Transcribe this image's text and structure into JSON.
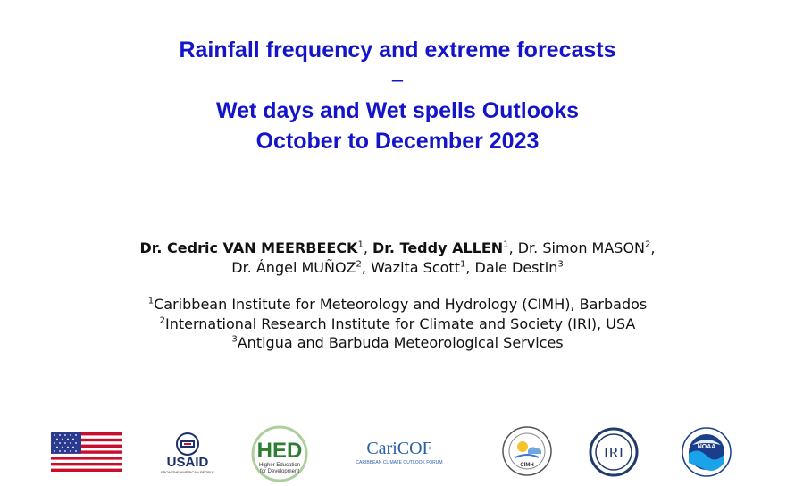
{
  "title": {
    "line1": "Rainfall frequency and extreme forecasts",
    "line2": "–",
    "line3": "Wet days and Wet spells Outlooks",
    "line4": "October to December 2023"
  },
  "authors": [
    {
      "name": "Dr. Cedric VAN MEERBEECK",
      "sup": "1",
      "bold": true,
      "sep": ", "
    },
    {
      "name": "Dr. Teddy ALLEN",
      "sup": "1",
      "bold": true,
      "sep": ", "
    },
    {
      "name": "Dr. Simon MASON",
      "sup": "2",
      "bold": false,
      "sep": ","
    },
    {
      "name": "Dr. Ángel MUÑOZ",
      "sup": "2",
      "bold": false,
      "sep": ", "
    },
    {
      "name": "Wazita Scott",
      "sup": "1",
      "bold": false,
      "sep": ", "
    },
    {
      "name": "Dale Destin",
      "sup": "3",
      "bold": false,
      "sep": ""
    }
  ],
  "affiliations": [
    {
      "sup": "1",
      "text": "Caribbean Institute for Meteorology and Hydrology (CIMH), Barbados"
    },
    {
      "sup": "2",
      "text": "International Research Institute for Climate and Society (IRI), USA"
    },
    {
      "sup": "3",
      "text": "Antigua and Barbuda Meteorological Services"
    }
  ],
  "logos": {
    "usaid": {
      "word": "USAID",
      "tagline": "FROM THE AMERICAN PEOPLE"
    },
    "hed": {
      "word": "HED",
      "tagline1": "Higher Education",
      "tagline2": "for Development"
    },
    "caricof": {
      "word": "CariCOF",
      "tagline": "CARIBBEAN CLIMATE OUTLOOK FORUM"
    },
    "cimh": {
      "word": "CIMH"
    },
    "iri": {
      "word": "IRI"
    },
    "noaa": {
      "word": "NOAA"
    }
  },
  "colors": {
    "title": "#1414c8",
    "flag_red": "#c8102e",
    "flag_blue": "#2a3b8f"
  }
}
